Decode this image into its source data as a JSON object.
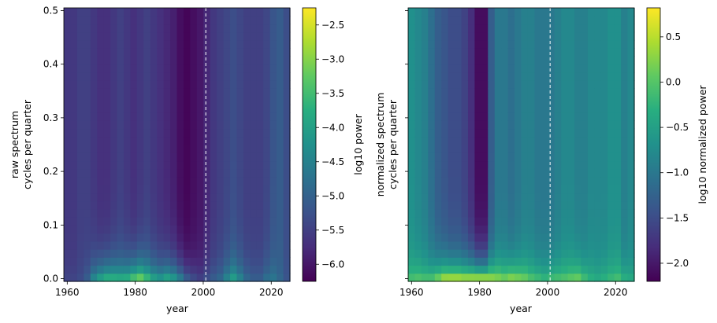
{
  "chart_data": [
    {
      "type": "heatmap",
      "xlabel": "year",
      "ylabel_lines": [
        "raw spectrum",
        "cycles per quarter"
      ],
      "colorbar_label": "log10 power",
      "colormap": "viridis",
      "xlim": [
        1959,
        2025.5
      ],
      "ylim": [
        -0.005,
        0.505
      ],
      "x_ticks": [
        1960,
        1980,
        2000,
        2020
      ],
      "y_ticks": [
        0.0,
        0.1,
        0.2,
        0.3,
        0.4,
        0.5
      ],
      "y_tick_labels": [
        "0.0",
        "0.1",
        "0.2",
        "0.3",
        "0.4",
        "0.5"
      ],
      "clim": [
        -6.25,
        -2.25
      ],
      "colorbar_ticks": [
        -6.0,
        -5.5,
        -5.0,
        -4.5,
        -4.0,
        -3.5,
        -3.0,
        -2.5
      ],
      "colorbar_tick_labels": [
        "−6.0",
        "−5.5",
        "−5.0",
        "−4.5",
        "−4.0",
        "−3.5",
        "−3.0",
        "−2.5"
      ],
      "vline_x": 2000.75,
      "columns_x": [
        1959,
        1961,
        1963,
        1965,
        1967,
        1969,
        1971,
        1973,
        1975,
        1977,
        1979,
        1981,
        1983,
        1985,
        1987,
        1989,
        1991,
        1993,
        1995,
        1997,
        1999,
        2001,
        2003,
        2005,
        2007,
        2009,
        2011,
        2013,
        2015,
        2017,
        2019,
        2021,
        2023,
        2025
      ],
      "low_freq_log10_power": [
        -5.4,
        -5.4,
        -5.3,
        -5.0,
        -4.2,
        -3.7,
        -3.4,
        -3.4,
        -3.5,
        -3.4,
        -3.0,
        -2.7,
        -3.2,
        -3.7,
        -3.9,
        -3.6,
        -3.8,
        -4.3,
        -4.9,
        -5.2,
        -5.4,
        -5.2,
        -5.0,
        -4.8,
        -4.3,
        -3.8,
        -4.3,
        -4.8,
        -5.0,
        -5.0,
        -4.7,
        -4.6,
        -4.9,
        -5.2
      ],
      "high_freq_log10_power": [
        -5.6,
        -5.6,
        -5.5,
        -5.5,
        -5.6,
        -5.7,
        -5.7,
        -5.6,
        -5.5,
        -5.6,
        -5.7,
        -5.6,
        -5.5,
        -5.6,
        -5.7,
        -5.8,
        -5.9,
        -6.1,
        -6.2,
        -6.1,
        -6.0,
        -5.8,
        -5.6,
        -5.5,
        -5.4,
        -5.3,
        -5.4,
        -5.5,
        -5.5,
        -5.5,
        -5.4,
        -5.2,
        -5.1,
        -5.3
      ]
    },
    {
      "type": "heatmap",
      "xlabel": "year",
      "ylabel_lines": [
        "normalized spectrum",
        "cycles per quarter"
      ],
      "colorbar_label": "log10 normalized power",
      "colormap": "viridis",
      "xlim": [
        1959,
        2025.5
      ],
      "ylim": [
        -0.005,
        0.505
      ],
      "x_ticks": [
        1960,
        1980,
        2000,
        2020
      ],
      "y_ticks": [
        0.0,
        0.1,
        0.2,
        0.3,
        0.4,
        0.5
      ],
      "y_tick_labels": [
        "",
        "",
        "",
        "",
        "",
        ""
      ],
      "clim": [
        -2.2,
        0.82
      ],
      "colorbar_ticks": [
        -2.0,
        -1.5,
        -1.0,
        -0.5,
        0.0,
        0.5
      ],
      "colorbar_tick_labels": [
        "−2.0",
        "−1.5",
        "−1.0",
        "−0.5",
        "0.0",
        "0.5"
      ],
      "vline_x": 2000.75,
      "columns_x": [
        1959,
        1961,
        1963,
        1965,
        1967,
        1969,
        1971,
        1973,
        1975,
        1977,
        1979,
        1981,
        1983,
        1985,
        1987,
        1989,
        1991,
        1993,
        1995,
        1997,
        1999,
        2001,
        2003,
        2005,
        2007,
        2009,
        2011,
        2013,
        2015,
        2017,
        2019,
        2021,
        2023,
        2025
      ],
      "low_freq_log10_power": [
        0.0,
        0.1,
        0.05,
        0.1,
        0.4,
        0.7,
        0.75,
        0.75,
        0.7,
        0.75,
        0.8,
        0.8,
        0.6,
        0.45,
        0.35,
        0.5,
        0.4,
        0.3,
        0.1,
        0.0,
        -0.1,
        0.0,
        0.05,
        0.1,
        0.2,
        0.3,
        0.0,
        -0.2,
        -0.3,
        -0.2,
        -0.1,
        0.0,
        -0.2,
        -0.3
      ],
      "high_freq_log10_power": [
        -0.7,
        -0.8,
        -0.9,
        -1.1,
        -1.3,
        -1.4,
        -1.5,
        -1.5,
        -1.6,
        -1.8,
        -2.1,
        -2.1,
        -1.3,
        -1.0,
        -1.0,
        -1.1,
        -1.0,
        -0.9,
        -0.9,
        -1.0,
        -1.0,
        -1.0,
        -0.9,
        -0.8,
        -0.8,
        -0.9,
        -0.9,
        -0.8,
        -0.8,
        -0.8,
        -0.7,
        -0.7,
        -0.9,
        -0.8
      ]
    }
  ]
}
